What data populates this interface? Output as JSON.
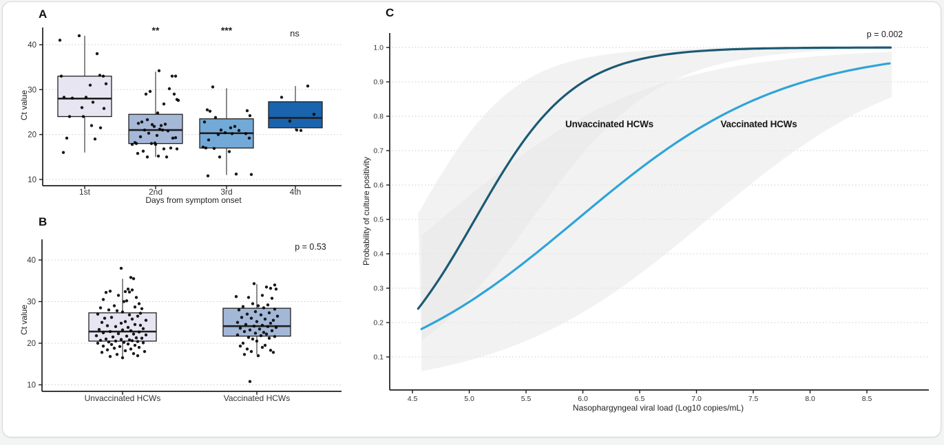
{
  "figure": {
    "card_background": "#ffffff",
    "card_border": "#d8d8d8"
  },
  "chart_data": [
    {
      "panel": "A",
      "type": "boxplot_jitter",
      "xlabel": "Days from symptom onset",
      "ylabel": "Ct value",
      "yticks": [
        40,
        30,
        20,
        10
      ],
      "ylim": [
        8,
        44
      ],
      "grid": "dotted-horizontal",
      "categories": [
        "1st",
        "2nd",
        "3rd",
        "4th"
      ],
      "significance": [
        "",
        "**",
        "***",
        "ns"
      ],
      "boxes": [
        {
          "category": "1st",
          "fill": "#e8e5f2",
          "whisker_low": 16,
          "q1": 24,
          "median": 28,
          "q3": 33,
          "whisker_high": 42
        },
        {
          "category": "2nd",
          "fill": "#a6b8d8",
          "whisker_low": 15,
          "q1": 18,
          "median": 21,
          "q3": 24.5,
          "whisker_high": 34
        },
        {
          "category": "3rd",
          "fill": "#73a9d6",
          "whisker_low": 11,
          "q1": 17,
          "median": 20.3,
          "q3": 23.5,
          "whisker_high": 30.3
        },
        {
          "category": "4th",
          "fill": "#1a63ad",
          "whisker_low": 21,
          "q1": 21.5,
          "median": 23.7,
          "q3": 27.3,
          "whisker_high": 30.8
        }
      ],
      "jitter_points": {
        "1st": [
          [
            -36,
            41
          ],
          [
            -8,
            42
          ],
          [
            18,
            38
          ],
          [
            -34,
            33
          ],
          [
            22,
            33.2
          ],
          [
            27,
            33
          ],
          [
            8,
            31
          ],
          [
            31,
            31.3
          ],
          [
            -30,
            28.3
          ],
          [
            -18,
            28.1
          ],
          [
            2,
            28.3
          ],
          [
            12,
            27.2
          ],
          [
            -4,
            26
          ],
          [
            28,
            25.8
          ],
          [
            -22,
            24
          ],
          [
            -2,
            24
          ],
          [
            10,
            22
          ],
          [
            23,
            21.5
          ],
          [
            -26,
            19.2
          ],
          [
            15,
            19
          ],
          [
            -31,
            16
          ]
        ],
        "2nd": [
          [
            5,
            34.2
          ],
          [
            24,
            33
          ],
          [
            29,
            33
          ],
          [
            -8,
            29.6
          ],
          [
            -14,
            29
          ],
          [
            20,
            30.2
          ],
          [
            27,
            29
          ],
          [
            31,
            27.8
          ],
          [
            33,
            27.6
          ],
          [
            12,
            26.8
          ],
          [
            3,
            24.8
          ],
          [
            -25,
            22.5
          ],
          [
            -12,
            23.3
          ],
          [
            -20,
            22.8
          ],
          [
            -5,
            22.2
          ],
          [
            8,
            22
          ],
          [
            14,
            22.3
          ],
          [
            -2,
            21.8
          ],
          [
            6,
            21.2
          ],
          [
            -16,
            21
          ],
          [
            10,
            21
          ],
          [
            18,
            20.8
          ],
          [
            -10,
            20.3
          ],
          [
            2,
            19.8
          ],
          [
            -22,
            19.5
          ],
          [
            25,
            19.2
          ],
          [
            29,
            19.3
          ],
          [
            -30,
            18.2
          ],
          [
            -28,
            18
          ],
          [
            -34,
            17.8
          ],
          [
            -6,
            18
          ],
          [
            0,
            17.8
          ],
          [
            12,
            16.8
          ],
          [
            -18,
            16.3
          ],
          [
            22,
            17
          ],
          [
            31,
            16.8
          ],
          [
            -26,
            15.8
          ],
          [
            4,
            15.2
          ],
          [
            -12,
            15
          ],
          [
            16,
            15
          ],
          [
            -1,
            18.1
          ]
        ],
        "3rd": [
          [
            -20,
            30.6
          ],
          [
            -28,
            25.5
          ],
          [
            -24,
            25.2
          ],
          [
            30,
            25.3
          ],
          [
            34,
            24.2
          ],
          [
            -16,
            23.8
          ],
          [
            -32,
            22.8
          ],
          [
            12,
            21.8
          ],
          [
            6,
            21.5
          ],
          [
            -8,
            21
          ],
          [
            18,
            20.9
          ],
          [
            -2,
            20.4
          ],
          [
            8,
            20.2
          ],
          [
            -12,
            20
          ],
          [
            28,
            20.2
          ],
          [
            33,
            19.2
          ],
          [
            -26,
            18.8
          ],
          [
            -34,
            17.2
          ],
          [
            -30,
            17
          ],
          [
            -18,
            16.9
          ],
          [
            4,
            16.2
          ],
          [
            -10,
            15
          ],
          [
            14,
            11.2
          ],
          [
            -27,
            10.8
          ],
          [
            36,
            11.1
          ]
        ],
        "4th": [
          [
            18,
            30.8
          ],
          [
            -20,
            28.3
          ],
          [
            27,
            24.5
          ],
          [
            -8,
            23
          ],
          [
            2,
            21
          ],
          [
            8,
            20.9
          ]
        ]
      }
    },
    {
      "panel": "B",
      "type": "boxplot_jitter",
      "xlabel": "",
      "ylabel": "Ct value",
      "p_value": "p = 0.53",
      "yticks": [
        40,
        30,
        20,
        10
      ],
      "ylim": [
        8,
        44
      ],
      "grid": "dotted-horizontal",
      "categories": [
        "Unvaccinated HCWs",
        "Vaccinated HCWs"
      ],
      "boxes": [
        {
          "category": "Unvaccinated HCWs",
          "fill": "#e8e5f2",
          "whisker_low": 16.5,
          "q1": 20.5,
          "median": 22.8,
          "q3": 27.3,
          "whisker_high": 35.5
        },
        {
          "category": "Vaccinated HCWs",
          "fill": "#a3b7d7",
          "whisker_low": 17.3,
          "q1": 21.7,
          "median": 24.1,
          "q3": 28.4,
          "whisker_high": 34.2,
          "outliers": [
            10.8
          ]
        }
      ],
      "jitter_points": {
        "Unvaccinated HCWs": [
          [
            -2,
            38
          ],
          [
            12,
            35.8
          ],
          [
            16,
            35.5
          ],
          [
            8,
            33
          ],
          [
            14,
            32.8
          ],
          [
            -18,
            32.5
          ],
          [
            -24,
            32.2
          ],
          [
            4,
            32.4
          ],
          [
            10,
            32.3
          ],
          [
            -6,
            31.5
          ],
          [
            20,
            31
          ],
          [
            -28,
            30.5
          ],
          [
            2,
            30
          ],
          [
            6,
            30.2
          ],
          [
            24,
            29.5
          ],
          [
            -12,
            29
          ],
          [
            18,
            28.7
          ],
          [
            -32,
            28.5
          ],
          [
            28,
            28.3
          ],
          [
            -20,
            28
          ],
          [
            -8,
            27.8
          ],
          [
            0,
            27.5
          ],
          [
            26,
            27.2
          ],
          [
            -36,
            27
          ],
          [
            10,
            26.8
          ],
          [
            22,
            26.5
          ],
          [
            -16,
            26.2
          ],
          [
            -26,
            26
          ],
          [
            14,
            25.8
          ],
          [
            34,
            25.5
          ],
          [
            4,
            25.2
          ],
          [
            -30,
            25
          ],
          [
            -2,
            24.8
          ],
          [
            18,
            24.5
          ],
          [
            26,
            24.3
          ],
          [
            -22,
            24.2
          ],
          [
            -10,
            24
          ],
          [
            8,
            23.8
          ],
          [
            30,
            23.5
          ],
          [
            -34,
            23.3
          ],
          [
            0,
            23.2
          ],
          [
            12,
            23
          ],
          [
            -18,
            22.8
          ],
          [
            24,
            22.7
          ],
          [
            -28,
            22.5
          ],
          [
            -6,
            22.3
          ],
          [
            16,
            22.2
          ],
          [
            34,
            22
          ],
          [
            -38,
            21.8
          ],
          [
            6,
            21.7
          ],
          [
            -14,
            21.5
          ],
          [
            20,
            21.3
          ],
          [
            28,
            21.2
          ],
          [
            -24,
            21
          ],
          [
            -2,
            20.9
          ],
          [
            10,
            20.8
          ],
          [
            -32,
            20.7
          ],
          [
            14,
            20.6
          ],
          [
            -10,
            20.5
          ],
          [
            22,
            20.4
          ],
          [
            -20,
            20.3
          ],
          [
            2,
            20.2
          ],
          [
            30,
            20.1
          ],
          [
            -36,
            20
          ],
          [
            8,
            19.8
          ],
          [
            -16,
            19.7
          ],
          [
            18,
            19.5
          ],
          [
            -28,
            19.3
          ],
          [
            -4,
            19.2
          ],
          [
            24,
            19
          ],
          [
            -12,
            18.8
          ],
          [
            12,
            18.6
          ],
          [
            -22,
            18.4
          ],
          [
            4,
            18.2
          ],
          [
            32,
            18
          ],
          [
            -30,
            17.8
          ],
          [
            16,
            17.5
          ],
          [
            -8,
            17.3
          ],
          [
            22,
            17
          ],
          [
            -18,
            16.8
          ],
          [
            0,
            16.5
          ]
        ],
        "Vaccinated HCWs": [
          [
            -4,
            34.3
          ],
          [
            26,
            34
          ],
          [
            -30,
            31.2
          ],
          [
            14,
            33.5
          ],
          [
            20,
            33.2
          ],
          [
            28,
            33
          ],
          [
            8,
            31.5
          ],
          [
            -12,
            31
          ],
          [
            22,
            30.8
          ],
          [
            -6,
            29.5
          ],
          [
            16,
            29.2
          ],
          [
            2,
            29
          ],
          [
            -20,
            28.8
          ],
          [
            10,
            28.5
          ],
          [
            26,
            28.2
          ],
          [
            -26,
            28
          ],
          [
            -2,
            27.6
          ],
          [
            18,
            27.3
          ],
          [
            -14,
            27
          ],
          [
            6,
            26.8
          ],
          [
            30,
            26.5
          ],
          [
            -22,
            26.2
          ],
          [
            -8,
            26
          ],
          [
            12,
            25.8
          ],
          [
            24,
            25.5
          ],
          [
            0,
            25.2
          ],
          [
            -28,
            25
          ],
          [
            20,
            24.8
          ],
          [
            -16,
            24.5
          ],
          [
            8,
            24.3
          ],
          [
            -4,
            24.1
          ],
          [
            16,
            24
          ],
          [
            28,
            23.8
          ],
          [
            -24,
            23.6
          ],
          [
            4,
            23.4
          ],
          [
            -10,
            23.2
          ],
          [
            22,
            23
          ],
          [
            -18,
            22.8
          ],
          [
            10,
            22.6
          ],
          [
            -2,
            22.4
          ],
          [
            14,
            22.2
          ],
          [
            -28,
            22
          ],
          [
            6,
            21.8
          ],
          [
            26,
            21.6
          ],
          [
            -12,
            21.4
          ],
          [
            18,
            21.2
          ],
          [
            -6,
            21
          ],
          [
            0,
            20.5
          ],
          [
            -20,
            20
          ],
          [
            12,
            19.5
          ],
          [
            -24,
            19.3
          ],
          [
            8,
            19
          ],
          [
            -14,
            18.6
          ],
          [
            20,
            18.3
          ],
          [
            -8,
            18
          ],
          [
            24,
            17.8
          ],
          [
            -18,
            17.3
          ],
          [
            2,
            17
          ],
          [
            -10,
            10.8
          ]
        ]
      }
    },
    {
      "panel": "C",
      "type": "line",
      "xlabel": "Nasophargyngeal viral load (Log10 copies/mL)",
      "ylabel": "Probability of culture positivity",
      "p_value": "p = 0.002",
      "xticks": [
        4.5,
        5.0,
        5.5,
        6.0,
        6.5,
        7.0,
        7.5,
        8.0,
        8.5
      ],
      "yticks": [
        1.0,
        0.9,
        0.8,
        0.7,
        0.6,
        0.5,
        0.4,
        0.3,
        0.2,
        0.1
      ],
      "xlim": [
        4.3,
        9.0
      ],
      "ylim": [
        0,
        1.04
      ],
      "grid": "dotted-horizontal",
      "band_color": "#e7e7e7",
      "series": [
        {
          "name": "Unvaccinated HCWs",
          "color": "#1b5a74",
          "x_range": [
            4.55,
            8.72
          ],
          "logistic": {
            "k": 2.3,
            "x0": 5.05
          },
          "points": [
            [
              4.55,
              0.24
            ],
            [
              5.0,
              0.47
            ],
            [
              5.5,
              0.74
            ],
            [
              6.0,
              0.9
            ],
            [
              6.5,
              0.97
            ],
            [
              7.0,
              0.99
            ],
            [
              7.5,
              1.0
            ],
            [
              8.0,
              1.0
            ],
            [
              8.7,
              1.0
            ]
          ],
          "band": {
            "upper": {
              "k": 2.3,
              "x0": 4.52
            },
            "lower": {
              "k": 1.8,
              "x0": 5.55
            }
          }
        },
        {
          "name": "Vaccinated HCWs",
          "color": "#2ea4d8",
          "x_range": [
            4.58,
            8.72
          ],
          "logistic": {
            "k": 1.1,
            "x0": 5.95
          },
          "points": [
            [
              4.58,
              0.19
            ],
            [
              5.0,
              0.26
            ],
            [
              5.5,
              0.38
            ],
            [
              6.0,
              0.51
            ],
            [
              6.5,
              0.65
            ],
            [
              7.0,
              0.76
            ],
            [
              7.5,
              0.85
            ],
            [
              8.0,
              0.91
            ],
            [
              8.7,
              0.95
            ]
          ],
          "band": {
            "upper": {
              "k": 1.1,
              "x0": 4.75
            },
            "lower": {
              "k": 1.1,
              "x0": 7.1
            }
          }
        }
      ]
    }
  ]
}
